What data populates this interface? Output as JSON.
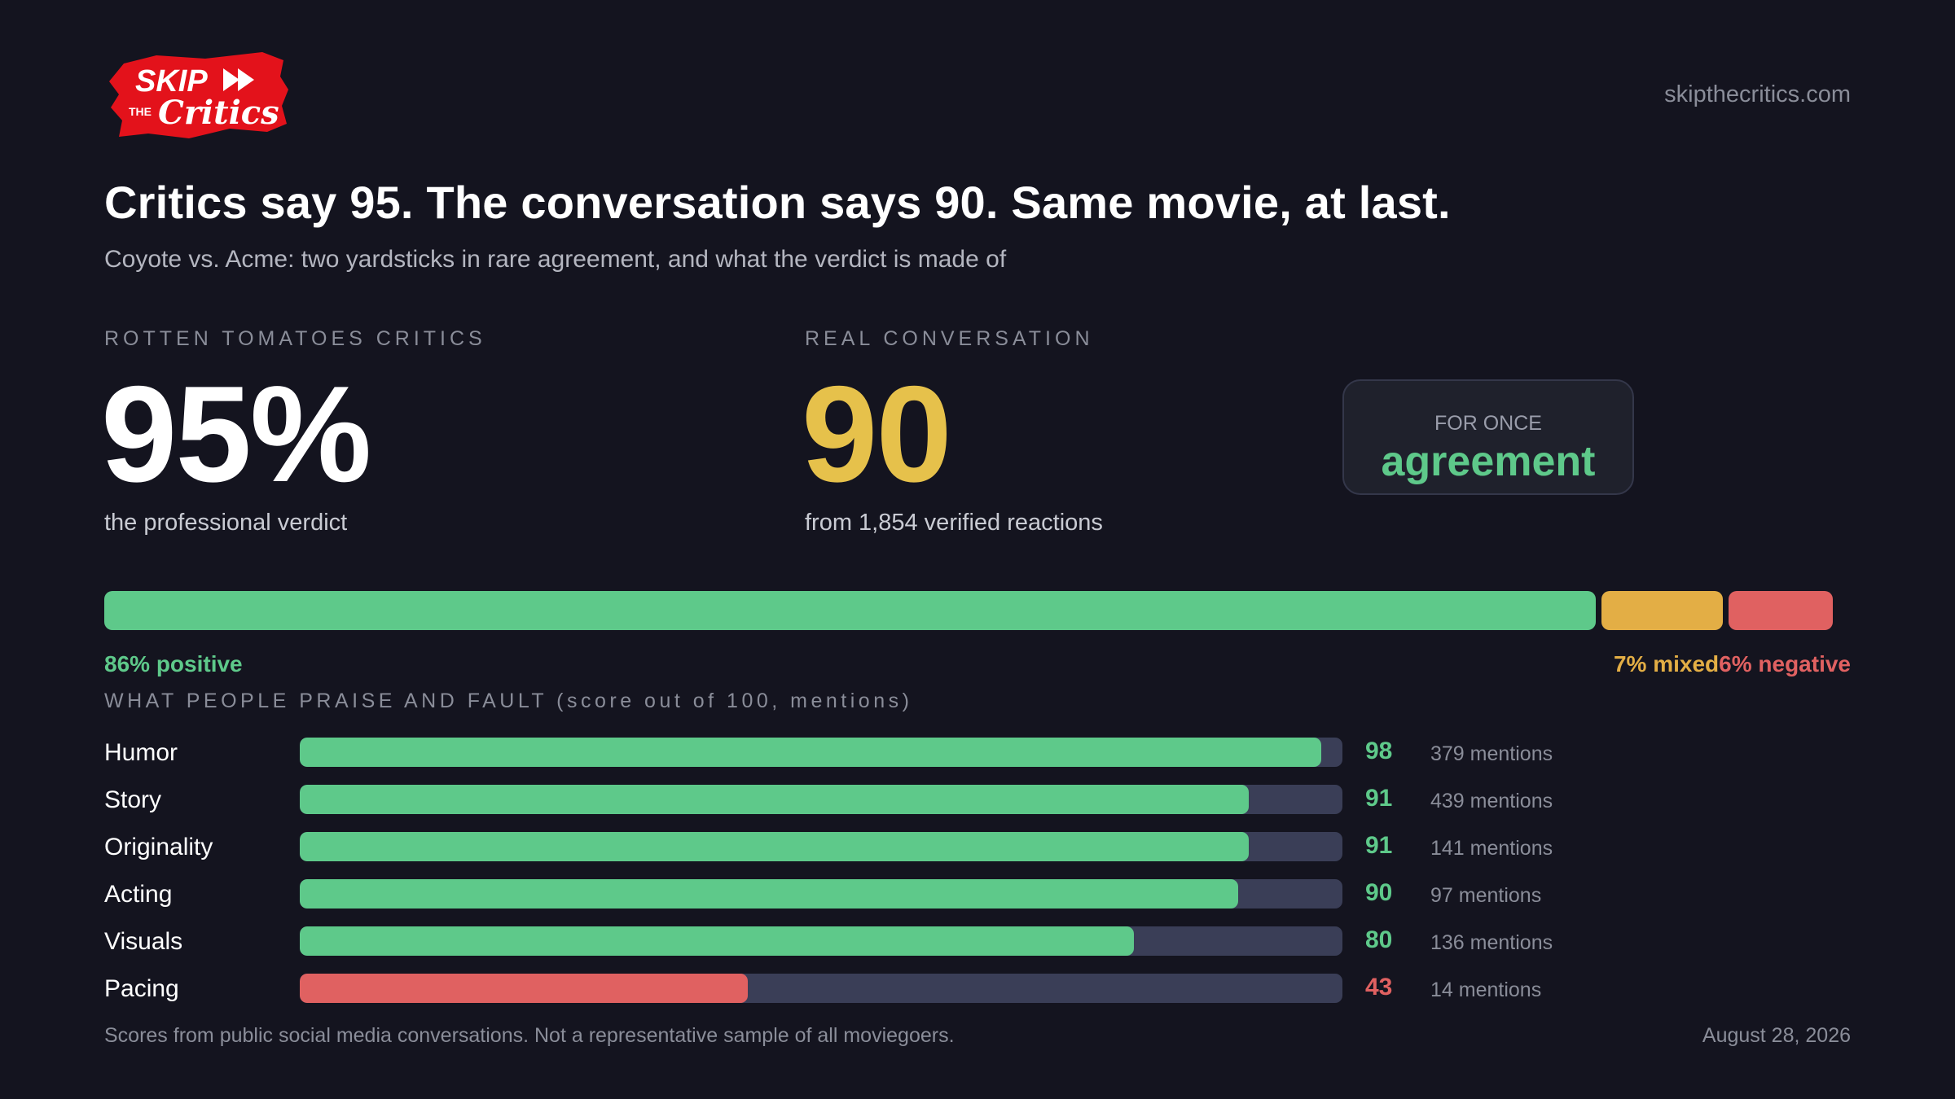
{
  "brand": {
    "logo_line1": "SKIP",
    "logo_the": "THE",
    "logo_line2": "Critics",
    "url": "skipthecritics.com",
    "color": "#e3121b"
  },
  "headline": "Critics say 95. The conversation says 90. Same movie, at last.",
  "subtitle": "Coyote vs. Acme: two yardsticks in rare agreement, and what the verdict is made of",
  "critics": {
    "kicker": "ROTTEN TOMATOES CRITICS",
    "score": "95%",
    "caption": "the professional verdict"
  },
  "conversation": {
    "kicker": "REAL CONVERSATION",
    "score": "90",
    "caption": "from 1,854 verified reactions",
    "color": "#e6c14b"
  },
  "verdict_badge": {
    "kicker": "FOR ONCE",
    "word": "agreement"
  },
  "chart_data": [
    {
      "type": "bar",
      "orientation": "horizontal-stacked",
      "categories": [
        "positive",
        "mixed",
        "negative"
      ],
      "values": [
        86,
        7,
        6
      ],
      "unit": "%",
      "colors": [
        "#5ec98a",
        "#e3ae45",
        "#e06161"
      ],
      "labels": [
        "86% positive",
        "7% mixed",
        "6% negative"
      ]
    },
    {
      "type": "bar",
      "orientation": "horizontal",
      "title": "WHAT PEOPLE PRAISE AND FAULT (score out of 100, mentions)",
      "categories": [
        "Humor",
        "Story",
        "Originality",
        "Acting",
        "Visuals",
        "Pacing"
      ],
      "values": [
        98,
        91,
        91,
        90,
        80,
        43
      ],
      "mentions": [
        "379 mentions",
        "439 mentions",
        "141 mentions",
        "97 mentions",
        "136 mentions",
        "14 mentions"
      ],
      "xlim": [
        0,
        100
      ],
      "colors": {
        "positive": "#5ec98a",
        "negative": "#e06161",
        "track": "#3a3e57"
      }
    }
  ],
  "footnote": "Scores from public social media conversations. Not a representative sample of all moviegoers.",
  "date": "August 28, 2026"
}
